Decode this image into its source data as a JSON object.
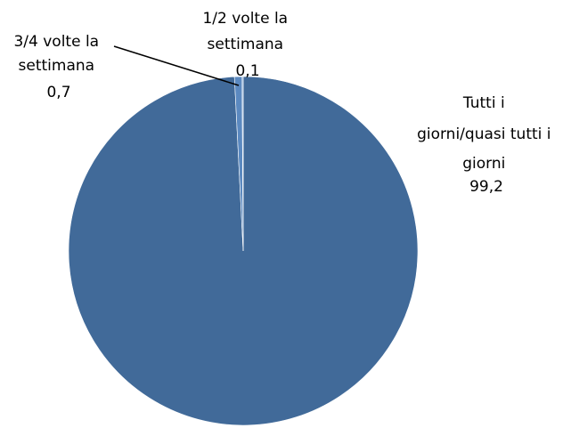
{
  "chart_data": {
    "type": "pie",
    "title": "",
    "start_angle_deg": 0,
    "direction": "clockwise",
    "slices": [
      {
        "label_lines": [
          "Tutti i",
          "giorni/quasi tutti i",
          "giorni"
        ],
        "value_label": "99,2",
        "value": 99.2,
        "color": "#416a99"
      },
      {
        "label_lines": [
          "3/4 volte la",
          "settimana"
        ],
        "value_label": "0,7",
        "value": 0.7,
        "color": "#5b89c0"
      },
      {
        "label_lines": [
          "1/2 volte la",
          "settimana"
        ],
        "value_label": "0,1",
        "value": 0.1,
        "color": "#8fb0d9"
      }
    ]
  }
}
